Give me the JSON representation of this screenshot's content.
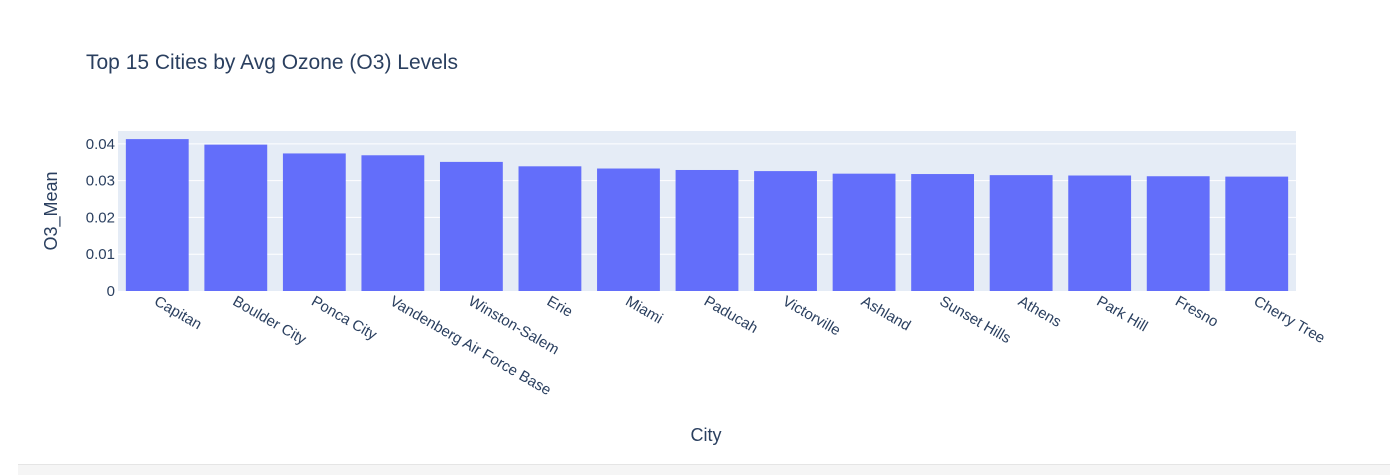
{
  "chart_data": {
    "type": "bar",
    "title": "Top 15 Cities by Avg Ozone (O3) Levels",
    "xlabel": "City",
    "ylabel": "O3_Mean",
    "categories": [
      "Capitan",
      "Boulder City",
      "Ponca City",
      "Vandenberg Air Force Base",
      "Winston-Salem",
      "Erie",
      "Miami",
      "Paducah",
      "Victorville",
      "Ashland",
      "Sunset Hills",
      "Athens",
      "Park Hill",
      "Fresno",
      "Cherry Tree"
    ],
    "values": [
      0.0413,
      0.0398,
      0.0374,
      0.0369,
      0.0351,
      0.0339,
      0.0333,
      0.0329,
      0.0326,
      0.0319,
      0.0318,
      0.0315,
      0.0314,
      0.0312,
      0.0311
    ],
    "ylim": [
      0,
      0.0435
    ],
    "yticks": [
      0,
      0.01,
      0.02,
      0.03,
      0.04
    ],
    "ytick_labels": [
      "0",
      "0.01",
      "0.02",
      "0.03",
      "0.04"
    ],
    "grid": true,
    "colors": {
      "bar": "#636efa",
      "plot_bg": "#e5ecf6",
      "grid": "#ffffff",
      "text": "#2a3f5f"
    }
  }
}
